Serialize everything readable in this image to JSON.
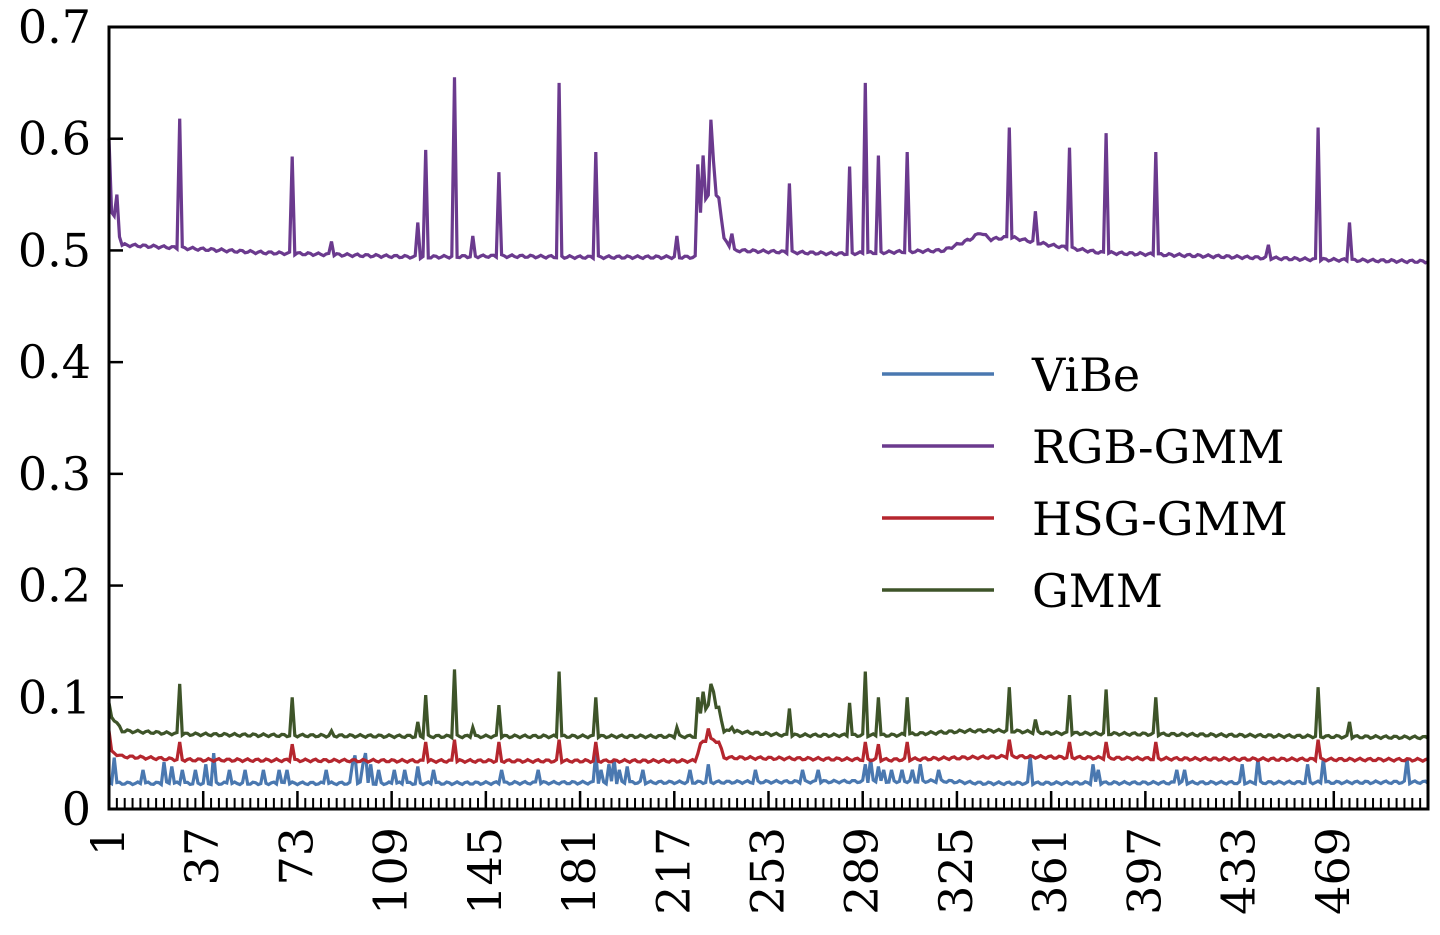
{
  "chart_data": {
    "type": "line",
    "title": "",
    "xlabel": "",
    "ylabel": "",
    "xlim": [
      1,
      505
    ],
    "ylim": [
      0,
      0.7
    ],
    "yticks": [
      0,
      0.1,
      0.2,
      0.3,
      0.4,
      0.5,
      0.6,
      0.7
    ],
    "ytick_labels": [
      "0",
      "0.1",
      "0.2",
      "0.3",
      "0.4",
      "0.5",
      "0.6",
      "0.7"
    ],
    "xticks": [
      1,
      37,
      73,
      109,
      145,
      181,
      217,
      253,
      289,
      325,
      361,
      397,
      433,
      469
    ],
    "xtick_labels": [
      "1",
      "37",
      "73",
      "109",
      "145",
      "181",
      "217",
      "253",
      "289",
      "325",
      "361",
      "397",
      "433",
      "469"
    ],
    "minor_xtick_step": 3,
    "grid": false,
    "legend_position": "center-right",
    "series": [
      {
        "name": "ViBe",
        "color": "#4a78b0",
        "baseline": [
          [
            1,
            0.023
          ],
          [
            120,
            0.023
          ],
          [
            230,
            0.024
          ],
          [
            320,
            0.025
          ],
          [
            335,
            0.023
          ],
          [
            505,
            0.024
          ]
        ],
        "spikes": [
          [
            3,
            0.046
          ],
          [
            14,
            0.035
          ],
          [
            22,
            0.042
          ],
          [
            25,
            0.038
          ],
          [
            29,
            0.035
          ],
          [
            34,
            0.035
          ],
          [
            38,
            0.04
          ],
          [
            41,
            0.05
          ],
          [
            47,
            0.035
          ],
          [
            53,
            0.035
          ],
          [
            60,
            0.035
          ],
          [
            66,
            0.035
          ],
          [
            69,
            0.035
          ],
          [
            84,
            0.035
          ],
          [
            94,
            0.04
          ],
          [
            95,
            0.048
          ],
          [
            98,
            0.04
          ],
          [
            99,
            0.05
          ],
          [
            101,
            0.04
          ],
          [
            104,
            0.035
          ],
          [
            110,
            0.035
          ],
          [
            114,
            0.035
          ],
          [
            119,
            0.038
          ],
          [
            125,
            0.035
          ],
          [
            151,
            0.035
          ],
          [
            165,
            0.035
          ],
          [
            187,
            0.05
          ],
          [
            189,
            0.035
          ],
          [
            192,
            0.04
          ],
          [
            194,
            0.045
          ],
          [
            196,
            0.035
          ],
          [
            199,
            0.038
          ],
          [
            205,
            0.035
          ],
          [
            223,
            0.035
          ],
          [
            230,
            0.04
          ],
          [
            248,
            0.035
          ],
          [
            266,
            0.035
          ],
          [
            272,
            0.035
          ],
          [
            290,
            0.04
          ],
          [
            292,
            0.045
          ],
          [
            295,
            0.038
          ],
          [
            297,
            0.035
          ],
          [
            300,
            0.035
          ],
          [
            304,
            0.035
          ],
          [
            308,
            0.035
          ],
          [
            311,
            0.04
          ],
          [
            318,
            0.035
          ],
          [
            353,
            0.047
          ],
          [
            377,
            0.04
          ],
          [
            379,
            0.035
          ],
          [
            409,
            0.035
          ],
          [
            412,
            0.035
          ],
          [
            434,
            0.04
          ],
          [
            440,
            0.045
          ],
          [
            459,
            0.04
          ],
          [
            465,
            0.045
          ],
          [
            497,
            0.045
          ]
        ]
      },
      {
        "name": "RGB-GMM",
        "color": "#6b3a8e",
        "baseline": [
          [
            1,
            0.54
          ],
          [
            3,
            0.53
          ],
          [
            6,
            0.505
          ],
          [
            30,
            0.502
          ],
          [
            60,
            0.498
          ],
          [
            90,
            0.496
          ],
          [
            120,
            0.494
          ],
          [
            150,
            0.495
          ],
          [
            180,
            0.494
          ],
          [
            210,
            0.494
          ],
          [
            225,
            0.494
          ],
          [
            227,
            0.535
          ],
          [
            230,
            0.55
          ],
          [
            234,
            0.548
          ],
          [
            236,
            0.51
          ],
          [
            240,
            0.5
          ],
          [
            280,
            0.497
          ],
          [
            320,
            0.5
          ],
          [
            330,
            0.51
          ],
          [
            334,
            0.516
          ],
          [
            338,
            0.51
          ],
          [
            345,
            0.512
          ],
          [
            360,
            0.505
          ],
          [
            380,
            0.498
          ],
          [
            420,
            0.495
          ],
          [
            460,
            0.492
          ],
          [
            505,
            0.49
          ]
        ],
        "spikes": [
          [
            1,
            0.6
          ],
          [
            4,
            0.55
          ],
          [
            28,
            0.618
          ],
          [
            71,
            0.584
          ],
          [
            86,
            0.508
          ],
          [
            119,
            0.525
          ],
          [
            122,
            0.59
          ],
          [
            133,
            0.655
          ],
          [
            140,
            0.513
          ],
          [
            150,
            0.57
          ],
          [
            173,
            0.65
          ],
          [
            187,
            0.588
          ],
          [
            218,
            0.513
          ],
          [
            226,
            0.577
          ],
          [
            228,
            0.585
          ],
          [
            231,
            0.617
          ],
          [
            232,
            0.58
          ],
          [
            239,
            0.515
          ],
          [
            261,
            0.56
          ],
          [
            284,
            0.575
          ],
          [
            290,
            0.65
          ],
          [
            295,
            0.585
          ],
          [
            306,
            0.588
          ],
          [
            345,
            0.61
          ],
          [
            355,
            0.535
          ],
          [
            368,
            0.592
          ],
          [
            382,
            0.605
          ],
          [
            401,
            0.588
          ],
          [
            444,
            0.505
          ],
          [
            463,
            0.61
          ],
          [
            475,
            0.525
          ]
        ]
      },
      {
        "name": "HSG-GMM",
        "color": "#b5262e",
        "baseline": [
          [
            1,
            0.052
          ],
          [
            6,
            0.047
          ],
          [
            30,
            0.044
          ],
          [
            120,
            0.043
          ],
          [
            225,
            0.043
          ],
          [
            227,
            0.058
          ],
          [
            230,
            0.063
          ],
          [
            234,
            0.06
          ],
          [
            236,
            0.046
          ],
          [
            300,
            0.044
          ],
          [
            330,
            0.046
          ],
          [
            345,
            0.047
          ],
          [
            400,
            0.045
          ],
          [
            505,
            0.044
          ]
        ],
        "spikes": [
          [
            1,
            0.07
          ],
          [
            28,
            0.06
          ],
          [
            71,
            0.058
          ],
          [
            122,
            0.06
          ],
          [
            133,
            0.062
          ],
          [
            150,
            0.06
          ],
          [
            173,
            0.062
          ],
          [
            187,
            0.06
          ],
          [
            230,
            0.072
          ],
          [
            290,
            0.06
          ],
          [
            295,
            0.058
          ],
          [
            306,
            0.06
          ],
          [
            345,
            0.062
          ],
          [
            368,
            0.06
          ],
          [
            382,
            0.06
          ],
          [
            401,
            0.06
          ],
          [
            463,
            0.062
          ]
        ]
      },
      {
        "name": "GMM",
        "color": "#3e5429",
        "baseline": [
          [
            1,
            0.085
          ],
          [
            3,
            0.08
          ],
          [
            6,
            0.07
          ],
          [
            30,
            0.067
          ],
          [
            60,
            0.066
          ],
          [
            120,
            0.065
          ],
          [
            225,
            0.065
          ],
          [
            227,
            0.085
          ],
          [
            230,
            0.092
          ],
          [
            234,
            0.09
          ],
          [
            236,
            0.07
          ],
          [
            260,
            0.066
          ],
          [
            300,
            0.066
          ],
          [
            330,
            0.07
          ],
          [
            345,
            0.07
          ],
          [
            360,
            0.068
          ],
          [
            400,
            0.067
          ],
          [
            460,
            0.065
          ],
          [
            505,
            0.064
          ]
        ],
        "spikes": [
          [
            1,
            0.095
          ],
          [
            28,
            0.112
          ],
          [
            71,
            0.1
          ],
          [
            86,
            0.07
          ],
          [
            119,
            0.078
          ],
          [
            122,
            0.102
          ],
          [
            133,
            0.125
          ],
          [
            140,
            0.073
          ],
          [
            150,
            0.093
          ],
          [
            173,
            0.123
          ],
          [
            187,
            0.1
          ],
          [
            218,
            0.073
          ],
          [
            226,
            0.1
          ],
          [
            228,
            0.105
          ],
          [
            231,
            0.112
          ],
          [
            232,
            0.105
          ],
          [
            239,
            0.073
          ],
          [
            261,
            0.09
          ],
          [
            284,
            0.095
          ],
          [
            290,
            0.123
          ],
          [
            295,
            0.1
          ],
          [
            306,
            0.1
          ],
          [
            345,
            0.109
          ],
          [
            355,
            0.08
          ],
          [
            368,
            0.102
          ],
          [
            382,
            0.107
          ],
          [
            401,
            0.1
          ],
          [
            463,
            0.109
          ],
          [
            475,
            0.078
          ]
        ]
      }
    ]
  }
}
